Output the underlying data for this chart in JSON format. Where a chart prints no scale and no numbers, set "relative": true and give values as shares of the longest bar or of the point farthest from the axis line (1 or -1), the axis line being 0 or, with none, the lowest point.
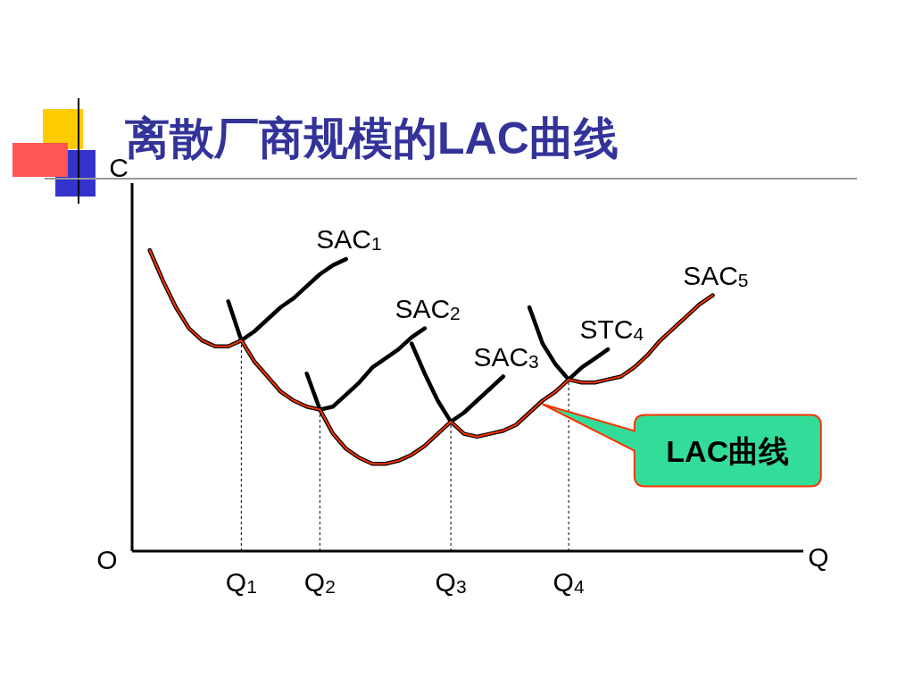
{
  "chart_data": {
    "type": "line",
    "relative": true,
    "title": "离散厂商规模的LAC曲线",
    "xlabel": "Q",
    "ylabel": "C",
    "annotations": [
      "O"
    ],
    "categories": [
      null,
      null,
      null,
      null,
      null,
      null,
      null,
      null,
      "Q$_{1}$",
      null,
      null,
      null,
      null,
      null,
      "Q$_{2}$",
      null,
      null,
      null,
      null,
      null,
      null,
      null,
      null,
      null,
      "Q$_{3}$",
      null,
      null,
      null,
      null,
      null,
      null,
      null,
      null,
      "Q$_{4}$",
      null,
      null,
      null,
      null,
      null,
      null,
      null,
      null,
      null,
      null,
      null
    ],
    "ref_lines": [
      {
        "axis": "x",
        "value": "Q$_{1}$",
        "line_style": "dotted"
      },
      {
        "axis": "x",
        "value": "Q$_{2}$",
        "line_style": "dotted"
      },
      {
        "axis": "x",
        "value": "Q$_{3}$",
        "line_style": "dotted"
      },
      {
        "axis": "x",
        "value": "Q$_{4}$",
        "line_style": "dotted"
      }
    ],
    "marker": "none",
    "line_style": "solid",
    "series": [
      {
        "name": "SAC$_{1}$",
        "color": "#000000",
        "values": [
          null,
          1.0,
          0.9,
          0.81,
          0.74,
          0.7,
          0.68,
          0.68,
          0.7,
          0.73,
          0.77,
          0.81,
          0.84,
          0.88,
          0.92,
          0.95,
          0.97,
          null,
          null,
          null,
          null,
          null,
          null,
          null,
          null,
          null,
          null,
          null,
          null,
          null,
          null,
          null,
          null,
          null,
          null,
          null,
          null,
          null,
          null,
          null,
          null,
          null,
          null,
          null,
          null
        ]
      },
      {
        "name": "SAC$_{2}$",
        "color": "#000000",
        "values": [
          null,
          null,
          null,
          null,
          null,
          null,
          null,
          0.83,
          0.7,
          0.63,
          0.58,
          0.53,
          0.5,
          0.48,
          0.47,
          0.48,
          0.52,
          0.56,
          0.61,
          0.64,
          0.67,
          0.71,
          0.74,
          null,
          null,
          null,
          null,
          null,
          null,
          null,
          null,
          null,
          null,
          null,
          null,
          null,
          null,
          null,
          null,
          null,
          null,
          null,
          null,
          null,
          null
        ]
      },
      {
        "name": "SAC$_{3}$",
        "color": "#000000",
        "values": [
          null,
          null,
          null,
          null,
          null,
          null,
          null,
          null,
          null,
          null,
          null,
          null,
          null,
          0.59,
          0.47,
          0.39,
          0.34,
          0.31,
          0.29,
          0.29,
          0.3,
          0.32,
          0.35,
          0.39,
          0.43,
          0.46,
          0.5,
          0.54,
          0.58,
          null,
          null,
          null,
          null,
          null,
          null,
          null,
          null,
          null,
          null,
          null,
          null,
          null,
          null,
          null,
          null
        ]
      },
      {
        "name": "STC$_{4}$",
        "color": "#000000",
        "values": [
          null,
          null,
          null,
          null,
          null,
          null,
          null,
          null,
          null,
          null,
          null,
          null,
          null,
          null,
          null,
          null,
          null,
          null,
          null,
          null,
          null,
          0.69,
          0.59,
          0.5,
          0.43,
          0.39,
          0.38,
          0.39,
          0.4,
          0.42,
          0.46,
          0.5,
          0.53,
          0.57,
          0.61,
          0.64,
          0.67,
          null,
          null,
          null,
          null,
          null,
          null,
          null,
          null
        ]
      },
      {
        "name": "SAC$_{5}$",
        "color": "#000000",
        "values": [
          null,
          null,
          null,
          null,
          null,
          null,
          null,
          null,
          null,
          null,
          null,
          null,
          null,
          null,
          null,
          null,
          null,
          null,
          null,
          null,
          null,
          null,
          null,
          null,
          null,
          null,
          null,
          null,
          null,
          null,
          0.81,
          0.69,
          0.62,
          0.57,
          0.56,
          0.56,
          0.57,
          0.58,
          0.61,
          0.65,
          0.7,
          0.74,
          0.78,
          0.82,
          0.85
        ]
      },
      {
        "name": "LAC曲线",
        "color": "#ff3300",
        "values": [
          null,
          1.0,
          0.9,
          0.81,
          0.74,
          0.7,
          0.68,
          0.68,
          0.7,
          0.63,
          0.58,
          0.53,
          0.5,
          0.48,
          0.47,
          0.39,
          0.34,
          0.31,
          0.29,
          0.29,
          0.3,
          0.32,
          0.35,
          0.39,
          0.43,
          0.39,
          0.38,
          0.39,
          0.4,
          0.42,
          0.46,
          0.5,
          0.53,
          0.57,
          0.56,
          0.56,
          0.57,
          0.58,
          0.61,
          0.65,
          0.7,
          0.74,
          0.78,
          0.82,
          0.85
        ]
      }
    ]
  }
}
